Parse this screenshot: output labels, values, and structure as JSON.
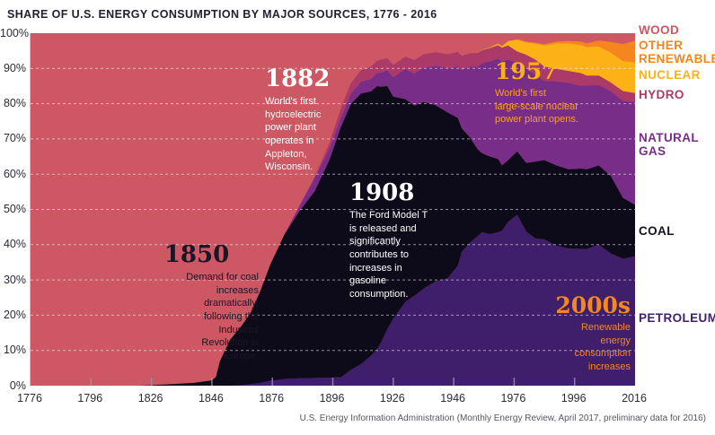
{
  "title": "SHARE OF U.S. ENERGY CONSUMPTION BY MAJOR SOURCES, 1776 - 2016",
  "source_note": "U.S. Energy Information Administration (Monthly Energy Review, April 2017, preliminary data for 2016)",
  "legend": {
    "items": [
      {
        "label": "WOOD",
        "color": "#cd5762"
      },
      {
        "label": "OTHER\nRENEWABLE",
        "color": "#f5861f"
      },
      {
        "label": "NUCLEAR",
        "color": "#fcb217"
      },
      {
        "label": "HYDRO",
        "color": "#ab3a69"
      },
      {
        "label": "NATURAL\nGAS",
        "color": "#782e88"
      },
      {
        "label": "COAL",
        "color": "#16121f"
      },
      {
        "label": "PETROLEUM",
        "color": "#3f1f6b"
      }
    ]
  },
  "annotations": [
    {
      "title": "1850",
      "body": "Demand for coal\nincreases\ndramatically,\nfollowing the\nIndustrial\nRevolution in\nEurope.",
      "title_color": "#1b1528",
      "body_color": "#1b1528"
    },
    {
      "title": "1882",
      "body": "World's first\nhydroelectric\npower plant\noperates in\nAppleton,\nWisconsin.",
      "title_color": "#ffffff",
      "body_color": "#ffffff"
    },
    {
      "title": "1908",
      "body": "The Ford Model T\nis released and\nsignificantly\ncontributes to\nincreases in\ngasoline\nconsumption.",
      "title_color": "#ffffff",
      "body_color": "#ffffff"
    },
    {
      "title": "1957",
      "body": "World's first\nlarge-scale nuclear\npower plant opens.",
      "title_color": "#fcb217",
      "body_color": "#f9a01d"
    },
    {
      "title": "2000s",
      "body": "Renewable\nenergy\nconsumption\nincreases",
      "title_color": "#f6871f",
      "body_color": "#f6871f"
    }
  ],
  "chart_data": {
    "type": "area",
    "stacking": "percent",
    "title": "SHARE OF U.S. ENERGY CONSUMPTION BY MAJOR SOURCES, 1776 - 2016",
    "xlabel": "",
    "ylabel": "",
    "grid": "dashed horizontal lines every 10%",
    "legend_position": "right",
    "x_axis": {
      "anchor_years": [
        1776,
        1796,
        1826,
        1846,
        1876,
        1896,
        1926,
        1946,
        1976,
        1996,
        2016
      ],
      "tick_labels": [
        "1776",
        "1796",
        "1826",
        "1846",
        "1876",
        "1896",
        "1926",
        "1946",
        "1976",
        "1996",
        "2016"
      ]
    },
    "y_axis": {
      "range": [
        0,
        100
      ],
      "tick_labels": [
        "100%",
        "90%",
        "80%",
        "70%",
        "60%",
        "50%",
        "40%",
        "30%",
        "20%",
        "10%",
        "0%"
      ]
    },
    "years": [
      1776,
      1790,
      1800,
      1810,
      1820,
      1830,
      1840,
      1846,
      1848,
      1850,
      1855,
      1860,
      1865,
      1870,
      1875,
      1880,
      1885,
      1890,
      1895,
      1900,
      1905,
      1910,
      1915,
      1918,
      1920,
      1923,
      1926,
      1930,
      1933,
      1936,
      1940,
      1944,
      1948,
      1950,
      1954,
      1958,
      1960,
      1964,
      1968,
      1970,
      1973,
      1977,
      1980,
      1983,
      1986,
      1990,
      1994,
      1998,
      2000,
      2004,
      2008,
      2012,
      2016
    ],
    "series": [
      {
        "name": "Petroleum",
        "color": "#3f1f6b",
        "values": [
          0,
          0,
          0,
          0,
          0,
          0,
          0,
          0,
          0,
          0,
          0,
          0.1,
          0.4,
          0.8,
          1.4,
          1.9,
          2.1,
          2.2,
          2.3,
          2.4,
          4.5,
          6.1,
          8.5,
          10.5,
          12.3,
          16,
          19,
          23.8,
          25.5,
          27.5,
          29.6,
          30.5,
          34,
          38,
          40.5,
          42.5,
          43.5,
          43,
          43.5,
          44,
          46.5,
          48.5,
          43.7,
          41.8,
          41.5,
          39.7,
          38.9,
          38.8,
          38.8,
          40,
          37.5,
          36,
          36.7
        ]
      },
      {
        "name": "Coal",
        "color": "#0d0a1a",
        "values": [
          0,
          0,
          0,
          0,
          0,
          0.3,
          0.8,
          1.5,
          2.5,
          7,
          13,
          16.3,
          20,
          26,
          33,
          41,
          47.5,
          53,
          62,
          71,
          75.5,
          76.8,
          75,
          74.5,
          72.5,
          69,
          63,
          57.5,
          54,
          53,
          50,
          47,
          42,
          35,
          30,
          24.5,
          22.5,
          22,
          20.8,
          18.5,
          17.5,
          18,
          19.5,
          21.8,
          22.5,
          22.8,
          22.5,
          22.8,
          22.6,
          22.5,
          22,
          17.3,
          14.6
        ]
      },
      {
        "name": "Natural Gas",
        "color": "#782e88",
        "values": [
          0,
          0,
          0,
          0,
          0,
          0,
          0,
          0,
          0,
          0,
          0,
          0,
          0,
          0,
          0,
          0,
          1.5,
          3.7,
          3.2,
          2.6,
          2.9,
          3.3,
          3.5,
          3.7,
          4,
          4.5,
          5.5,
          8.6,
          9,
          9.7,
          11.2,
          12.5,
          14.5,
          16.5,
          20,
          23.5,
          25.5,
          27,
          28.5,
          29.5,
          28.5,
          25,
          26.9,
          24.5,
          22.5,
          23.8,
          24.5,
          23.5,
          23.8,
          22.8,
          24,
          27.5,
          29.2
        ]
      },
      {
        "name": "Hydro",
        "color": "#ab3a69",
        "values": [
          0,
          0,
          0,
          0,
          0,
          0,
          0,
          0,
          0,
          0,
          0,
          0,
          0,
          0,
          0,
          0,
          0,
          0.3,
          1.5,
          2.7,
          2.9,
          3.3,
          3.5,
          3.5,
          3.7,
          3.4,
          3.5,
          3.4,
          3.9,
          3.8,
          3.8,
          4,
          4.2,
          4,
          3.8,
          4,
          3.7,
          3.8,
          3.8,
          3.9,
          4,
          3.3,
          3.8,
          4.4,
          4,
          3.6,
          3.4,
          3.6,
          2.8,
          2.7,
          2.5,
          2.8,
          2.5
        ]
      },
      {
        "name": "Nuclear",
        "color": "#fcb217",
        "values": [
          0,
          0,
          0,
          0,
          0,
          0,
          0,
          0,
          0,
          0,
          0,
          0,
          0,
          0,
          0,
          0,
          0,
          0,
          0,
          0,
          0,
          0,
          0,
          0,
          0,
          0,
          0,
          0,
          0,
          0,
          0,
          0,
          0,
          0,
          0,
          0.05,
          0.1,
          0.2,
          0.4,
          0.4,
          1.2,
          3.4,
          3.5,
          4.5,
          6,
          7.2,
          7.8,
          8,
          8.1,
          8.2,
          8.5,
          8.5,
          8.7
        ]
      },
      {
        "name": "Other Renewable",
        "color": "#f5861f",
        "values": [
          0,
          0,
          0,
          0,
          0,
          0,
          0,
          0,
          0,
          0,
          0,
          0,
          0,
          0,
          0,
          0,
          0,
          0,
          0,
          0,
          0,
          0,
          0,
          0,
          0,
          0,
          0,
          0,
          0,
          0,
          0,
          0,
          0,
          0,
          0,
          0,
          0,
          0,
          0.1,
          0.1,
          0.1,
          0.1,
          0.2,
          0.3,
          0.4,
          0.5,
          0.7,
          0.9,
          1,
          1.7,
          3,
          4.8,
          6.2
        ]
      },
      {
        "name": "Wood",
        "color": "#cd5762",
        "is_background": true,
        "values": [
          100,
          100,
          100,
          100,
          100,
          99.7,
          99.2,
          98.5,
          97.5,
          93,
          87,
          83.6,
          79.6,
          73.2,
          65.6,
          57.1,
          48.9,
          40.8,
          31,
          21.3,
          14.2,
          10.5,
          9.5,
          7.8,
          7.5,
          7.1,
          9,
          6.7,
          7.6,
          6,
          5.4,
          6,
          5.3,
          6.5,
          5.7,
          5.5,
          4.7,
          4,
          3,
          3.6,
          2.2,
          1.7,
          2.4,
          2.7,
          3.1,
          2.4,
          2.2,
          2.4,
          2.9,
          2.1,
          2.5,
          3.1,
          2.1
        ]
      }
    ]
  }
}
